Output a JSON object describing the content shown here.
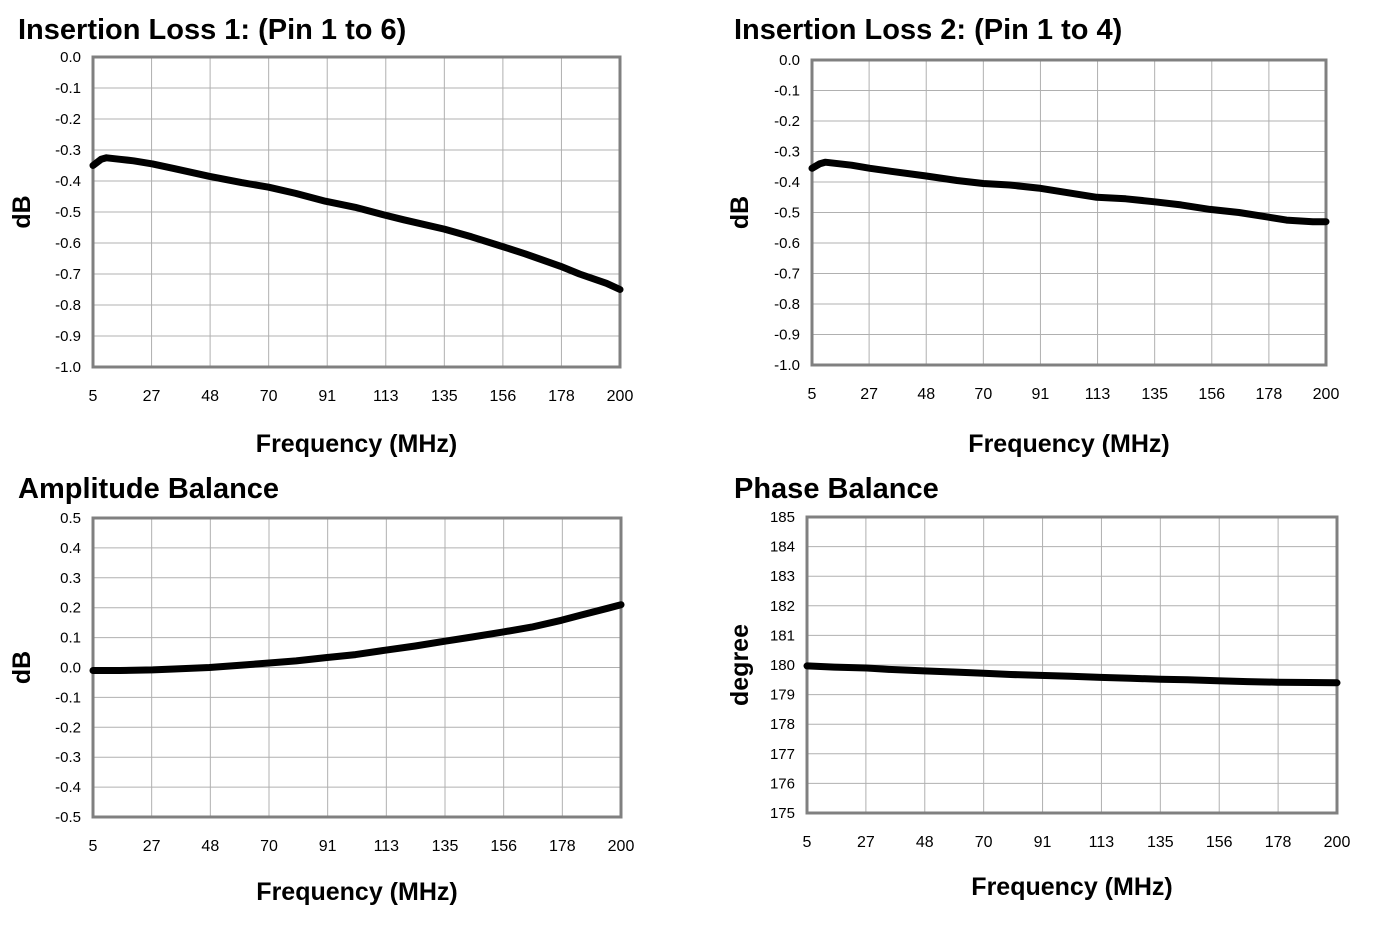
{
  "chart_data": [
    {
      "type": "line",
      "title": "Insertion Loss 1: (Pin 1 to 6)",
      "xlabel": "Frequency (MHz)",
      "ylabel": "dB",
      "xticks": [
        "5",
        "27",
        "48",
        "70",
        "91",
        "113",
        "135",
        "156",
        "178",
        "200"
      ],
      "yticks": [
        "0.0",
        "-0.1",
        "-0.2",
        "-0.3",
        "-0.4",
        "-0.5",
        "-0.6",
        "-0.7",
        "-0.8",
        "-0.9",
        "-1.0"
      ],
      "xlim": [
        5,
        200
      ],
      "ylim": [
        -1.0,
        0.0
      ],
      "grid": true,
      "series": [
        {
          "x": [
            5,
            8,
            10,
            15,
            20,
            27,
            35,
            48,
            60,
            70,
            80,
            91,
            102,
            113,
            120,
            135,
            145,
            156,
            165,
            178,
            185,
            195,
            200
          ],
          "y": [
            -0.35,
            -0.33,
            -0.325,
            -0.33,
            -0.335,
            -0.345,
            -0.36,
            -0.385,
            -0.405,
            -0.42,
            -0.44,
            -0.465,
            -0.485,
            -0.51,
            -0.525,
            -0.555,
            -0.58,
            -0.61,
            -0.635,
            -0.675,
            -0.7,
            -0.73,
            -0.75
          ]
        }
      ]
    },
    {
      "type": "line",
      "title": "Insertion Loss 2: (Pin 1 to 4)",
      "xlabel": "Frequency (MHz)",
      "ylabel": "dB",
      "xticks": [
        "5",
        "27",
        "48",
        "70",
        "91",
        "113",
        "135",
        "156",
        "178",
        "200"
      ],
      "yticks": [
        "0.0",
        "-0.1",
        "-0.2",
        "-0.3",
        "-0.4",
        "-0.5",
        "-0.6",
        "-0.7",
        "-0.8",
        "-0.9",
        "-1.0"
      ],
      "xlim": [
        5,
        200
      ],
      "ylim": [
        -1.0,
        0.0
      ],
      "grid": true,
      "series": [
        {
          "x": [
            5,
            8,
            10,
            15,
            20,
            27,
            35,
            48,
            60,
            70,
            80,
            91,
            102,
            113,
            124,
            135,
            145,
            156,
            167,
            178,
            185,
            195,
            200
          ],
          "y": [
            -0.355,
            -0.34,
            -0.335,
            -0.34,
            -0.345,
            -0.355,
            -0.365,
            -0.38,
            -0.395,
            -0.405,
            -0.41,
            -0.42,
            -0.435,
            -0.45,
            -0.455,
            -0.465,
            -0.475,
            -0.49,
            -0.5,
            -0.515,
            -0.525,
            -0.53,
            -0.53
          ]
        }
      ]
    },
    {
      "type": "line",
      "title": "Amplitude Balance",
      "xlabel": "Frequency (MHz)",
      "ylabel": "dB",
      "xticks": [
        "5",
        "27",
        "48",
        "70",
        "91",
        "113",
        "135",
        "156",
        "178",
        "200"
      ],
      "yticks": [
        "0.5",
        "0.4",
        "0.3",
        "0.2",
        "0.1",
        "0.0",
        "-0.1",
        "-0.2",
        "-0.3",
        "-0.4",
        "-0.5"
      ],
      "xlim": [
        5,
        200
      ],
      "ylim": [
        -0.5,
        0.5
      ],
      "grid": true,
      "series": [
        {
          "x": [
            5,
            15,
            27,
            35,
            48,
            60,
            70,
            80,
            91,
            102,
            113,
            124,
            135,
            145,
            156,
            167,
            178,
            185,
            195,
            200
          ],
          "y": [
            -0.01,
            -0.01,
            -0.008,
            -0.005,
            0.0,
            0.008,
            0.015,
            0.022,
            0.033,
            0.043,
            0.058,
            0.072,
            0.088,
            0.102,
            0.118,
            0.135,
            0.158,
            0.175,
            0.198,
            0.21
          ]
        }
      ]
    },
    {
      "type": "line",
      "title": "Phase Balance",
      "xlabel": "Frequency (MHz)",
      "ylabel": "degree",
      "xticks": [
        "5",
        "27",
        "48",
        "70",
        "91",
        "113",
        "135",
        "156",
        "178",
        "200"
      ],
      "yticks": [
        "185",
        "184",
        "183",
        "182",
        "181",
        "180",
        "179",
        "178",
        "177",
        "176",
        "175"
      ],
      "xlim": [
        5,
        200
      ],
      "ylim": [
        175,
        185
      ],
      "grid": true,
      "series": [
        {
          "x": [
            5,
            15,
            27,
            35,
            48,
            60,
            70,
            80,
            91,
            102,
            113,
            124,
            135,
            145,
            156,
            167,
            178,
            190,
            200
          ],
          "y": [
            179.97,
            179.93,
            179.9,
            179.85,
            179.8,
            179.76,
            179.72,
            179.68,
            179.65,
            179.62,
            179.58,
            179.55,
            179.52,
            179.5,
            179.47,
            179.44,
            179.42,
            179.41,
            179.4
          ]
        }
      ]
    }
  ]
}
